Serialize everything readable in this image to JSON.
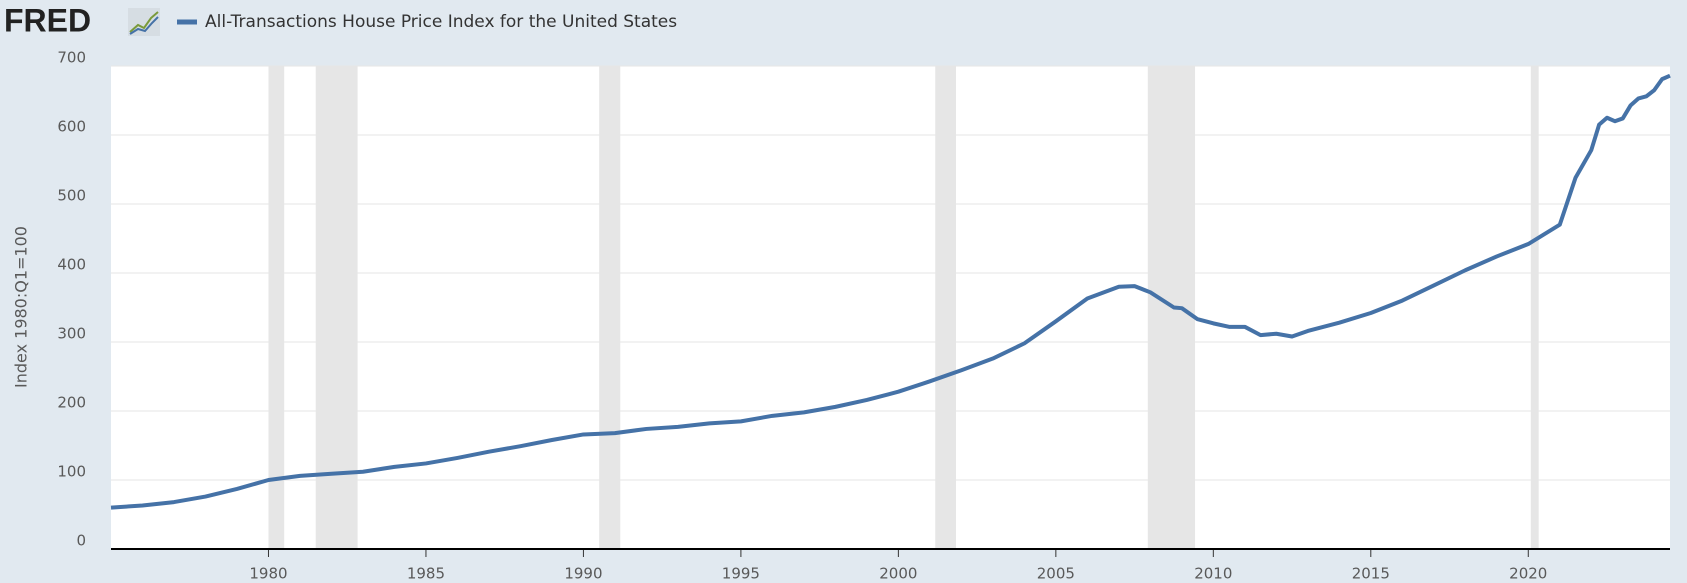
{
  "chart_data": {
    "type": "line",
    "brand": "FRED",
    "y_label": "Index 1980:Q1=100",
    "series": [
      {
        "name": "All-Transactions House Price Index for the United States",
        "color": "#4572a7",
        "x": [
          1975,
          1976,
          1977,
          1978,
          1979,
          1980,
          1981,
          1982,
          1983,
          1984,
          1985,
          1986,
          1987,
          1988,
          1989,
          1990,
          1991,
          1992,
          1993,
          1994,
          1995,
          1996,
          1997,
          1998,
          1999,
          2000,
          2001,
          2002,
          2003,
          2004,
          2005,
          2006,
          2007,
          2007.5,
          2008,
          2008.75,
          2009,
          2009.5,
          2010,
          2010.5,
          2011,
          2011.5,
          2012,
          2012.5,
          2013,
          2014,
          2015,
          2016,
          2017,
          2018,
          2019,
          2020,
          2021,
          2021.5,
          2022,
          2022.25,
          2022.5,
          2022.75,
          2023,
          2023.25,
          2023.5,
          2023.75,
          2024,
          2024.25,
          2024.5
        ],
        "values": [
          60,
          63,
          68,
          76,
          87,
          100,
          106,
          109,
          112,
          119,
          124,
          132,
          141,
          149,
          158,
          166,
          168,
          174,
          177,
          182,
          185,
          193,
          198,
          206,
          216,
          228,
          243,
          259,
          276,
          298,
          330,
          363,
          380,
          381,
          372,
          350,
          349,
          333,
          327,
          322,
          322,
          310,
          312,
          308,
          316,
          328,
          342,
          360,
          382,
          404,
          424,
          442,
          470,
          538,
          578,
          615,
          625,
          620,
          624,
          643,
          653,
          656,
          665,
          681,
          686
        ]
      }
    ],
    "recessions": [
      [
        1980,
        1980.5
      ],
      [
        1981.5,
        1982.83
      ],
      [
        1990.5,
        1991.17
      ],
      [
        2001.17,
        2001.83
      ],
      [
        2007.92,
        2009.42
      ],
      [
        2020.08,
        2020.33
      ]
    ],
    "xlim": [
      1975,
      2024.5
    ],
    "xticks": [
      1980,
      1985,
      1990,
      1995,
      2000,
      2005,
      2010,
      2015,
      2020
    ],
    "ylim": [
      0,
      700
    ],
    "yticks": [
      0,
      100,
      200,
      300,
      400,
      500,
      600,
      700
    ],
    "grid": true
  }
}
